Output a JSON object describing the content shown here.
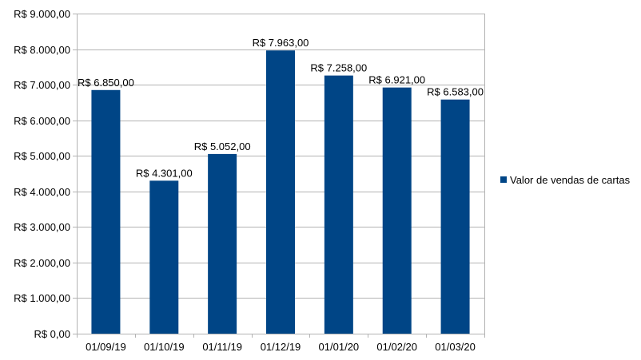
{
  "chart_data": {
    "type": "bar",
    "title": "",
    "xlabel": "",
    "ylabel": "",
    "categories": [
      "01/09/19",
      "01/10/19",
      "01/11/19",
      "01/12/19",
      "01/01/20",
      "01/02/20",
      "01/03/20"
    ],
    "series": [
      {
        "name": "Valor de vendas de cartas",
        "values": [
          6850,
          4301,
          5052,
          7963,
          7258,
          6921,
          6583
        ],
        "labels": [
          "R$ 6.850,00",
          "R$ 4.301,00",
          "R$ 5.052,00",
          "R$ 7.963,00",
          "R$ 7.258,00",
          "R$ 6.921,00",
          "R$ 6.583,00"
        ]
      }
    ],
    "ylim": [
      0,
      9000
    ],
    "yticks": [
      0,
      1000,
      2000,
      3000,
      4000,
      5000,
      6000,
      7000,
      8000,
      9000
    ],
    "ytick_labels": [
      "R$ 0,00",
      "R$ 1.000,00",
      "R$ 2.000,00",
      "R$ 3.000,00",
      "R$ 4.000,00",
      "R$ 5.000,00",
      "R$ 6.000,00",
      "R$ 7.000,00",
      "R$ 8.000,00",
      "R$ 9.000,00"
    ],
    "grid": true,
    "legend_position": "right",
    "colors": {
      "bar": "#004586",
      "grid": "#b3b3b3",
      "axis": "#b3b3b3"
    }
  }
}
